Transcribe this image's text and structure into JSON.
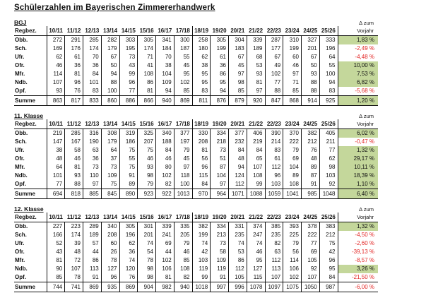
{
  "title": "Schülerzahlen im Bayerischen Zimmererhandwerk",
  "labels": {
    "region_header": "Regbez.",
    "years": [
      "10/11",
      "11/12",
      "12/13",
      "13/14",
      "14/15",
      "15/16",
      "16/17",
      "17/18",
      "18/19",
      "19/20",
      "20/21",
      "21/22",
      "22/23",
      "23/24",
      "24/25",
      "25/26"
    ],
    "delta_top": "Δ zum",
    "delta_bottom": "Vorjahr"
  },
  "colors": {
    "positive_delta_bg": "#c4d79b",
    "negative_delta_text": "#e32726",
    "grid_line": "#111111"
  },
  "tables": [
    {
      "label": "BGJ",
      "rows": [
        {
          "region": "Obb.",
          "values": [
            272,
            291,
            285,
            282,
            303,
            305,
            341,
            300,
            258,
            305,
            304,
            339,
            287,
            310,
            327,
            333
          ],
          "delta": "1,83 %"
        },
        {
          "region": "Sch.",
          "values": [
            169,
            176,
            174,
            179,
            195,
            174,
            184,
            187,
            180,
            199,
            183,
            189,
            177,
            199,
            201,
            196
          ],
          "delta": "-2,49 %"
        },
        {
          "region": "Ufr.",
          "values": [
            62,
            61,
            70,
            67,
            73,
            71,
            70,
            55,
            62,
            61,
            67,
            68,
            67,
            60,
            67,
            64
          ],
          "delta": "-4,48 %"
        },
        {
          "region": "Ofr.",
          "values": [
            46,
            36,
            36,
            50,
            43,
            41,
            38,
            45,
            38,
            36,
            45,
            53,
            49,
            46,
            50,
            55
          ],
          "delta": "10,00 %"
        },
        {
          "region": "Mfr.",
          "values": [
            114,
            81,
            84,
            94,
            99,
            108,
            104,
            95,
            95,
            86,
            97,
            93,
            102,
            97,
            93,
            100
          ],
          "delta": "7,53 %"
        },
        {
          "region": "Ndb.",
          "values": [
            107,
            96,
            101,
            88,
            96,
            86,
            109,
            102,
            95,
            95,
            98,
            81,
            77,
            71,
            88,
            94
          ],
          "delta": "6,82 %"
        },
        {
          "region": "Opf.",
          "values": [
            93,
            76,
            83,
            100,
            77,
            81,
            94,
            85,
            83,
            94,
            85,
            97,
            88,
            85,
            88,
            83
          ],
          "delta": "-5,68 %"
        },
        {
          "region": "Summe",
          "values": [
            863,
            817,
            833,
            860,
            886,
            866,
            940,
            869,
            811,
            876,
            879,
            920,
            847,
            868,
            914,
            925
          ],
          "delta": "1,20 %"
        }
      ]
    },
    {
      "label": "11. Klasse",
      "rows": [
        {
          "region": "Obb.",
          "values": [
            219,
            285,
            316,
            308,
            319,
            325,
            340,
            377,
            330,
            334,
            377,
            406,
            390,
            370,
            382,
            405
          ],
          "delta": "6,02 %"
        },
        {
          "region": "Sch.",
          "values": [
            147,
            167,
            190,
            179,
            186,
            207,
            188,
            197,
            208,
            218,
            232,
            219,
            214,
            222,
            212,
            211
          ],
          "delta": "-0,47 %"
        },
        {
          "region": "Ufr.",
          "values": [
            38,
            58,
            63,
            64,
            75,
            75,
            84,
            79,
            81,
            73,
            84,
            84,
            83,
            79,
            76,
            77
          ],
          "delta": "1,32 %"
        },
        {
          "region": "Ofr.",
          "values": [
            48,
            46,
            36,
            37,
            55,
            46,
            46,
            45,
            56,
            51,
            48,
            65,
            61,
            69,
            48,
            62
          ],
          "delta": "29,17 %"
        },
        {
          "region": "Mfr.",
          "values": [
            64,
            81,
            73,
            73,
            75,
            93,
            80,
            97,
            96,
            87,
            94,
            107,
            112,
            104,
            89,
            98
          ],
          "delta": "10,11 %"
        },
        {
          "region": "Ndb.",
          "values": [
            101,
            93,
            110,
            109,
            91,
            98,
            102,
            118,
            115,
            104,
            124,
            108,
            96,
            89,
            87,
            103
          ],
          "delta": "18,39 %"
        },
        {
          "region": "Opf.",
          "values": [
            77,
            88,
            97,
            75,
            89,
            79,
            82,
            100,
            84,
            97,
            112,
            99,
            103,
            108,
            91,
            92
          ],
          "delta": "1,10 %"
        },
        {
          "region": "Summe",
          "values": [
            694,
            818,
            885,
            845,
            890,
            923,
            922,
            1013,
            970,
            964,
            1071,
            1088,
            1059,
            1041,
            985,
            1048
          ],
          "delta": "6,40 %"
        }
      ]
    },
    {
      "label": "12. Klasse",
      "rows": [
        {
          "region": "Obb.",
          "values": [
            227,
            223,
            289,
            340,
            305,
            301,
            339,
            335,
            382,
            334,
            331,
            374,
            385,
            393,
            378,
            383
          ],
          "delta": "1,32 %"
        },
        {
          "region": "Sch.",
          "values": [
            166,
            174,
            189,
            208,
            196,
            201,
            241,
            205,
            199,
            213,
            235,
            247,
            235,
            225,
            222,
            212
          ],
          "delta": "-4,50 %"
        },
        {
          "region": "Ufr.",
          "values": [
            52,
            39,
            57,
            60,
            62,
            74,
            69,
            79,
            74,
            73,
            74,
            74,
            82,
            79,
            77,
            75
          ],
          "delta": "-2,60 %"
        },
        {
          "region": "Ofr.",
          "values": [
            43,
            48,
            44,
            26,
            36,
            54,
            44,
            46,
            42,
            58,
            53,
            46,
            63,
            56,
            69,
            42
          ],
          "delta": "-39,13 %"
        },
        {
          "region": "Mfr.",
          "values": [
            81,
            72,
            86,
            78,
            74,
            78,
            102,
            85,
            103,
            109,
            86,
            95,
            112,
            114,
            105,
            96
          ],
          "delta": "-8,57 %"
        },
        {
          "region": "Ndb.",
          "values": [
            90,
            107,
            113,
            127,
            120,
            98,
            106,
            108,
            119,
            119,
            112,
            127,
            113,
            106,
            92,
            95
          ],
          "delta": "3,26 %"
        },
        {
          "region": "Opf.",
          "values": [
            85,
            78,
            91,
            96,
            76,
            98,
            81,
            82,
            99,
            91,
            105,
            115,
            107,
            102,
            107,
            84
          ],
          "delta": "-21,50 %"
        },
        {
          "region": "Summe",
          "values": [
            744,
            741,
            869,
            935,
            869,
            904,
            982,
            940,
            1018,
            997,
            996,
            1078,
            1097,
            1075,
            1050,
            987
          ],
          "delta": "-6,00 %"
        }
      ]
    }
  ]
}
